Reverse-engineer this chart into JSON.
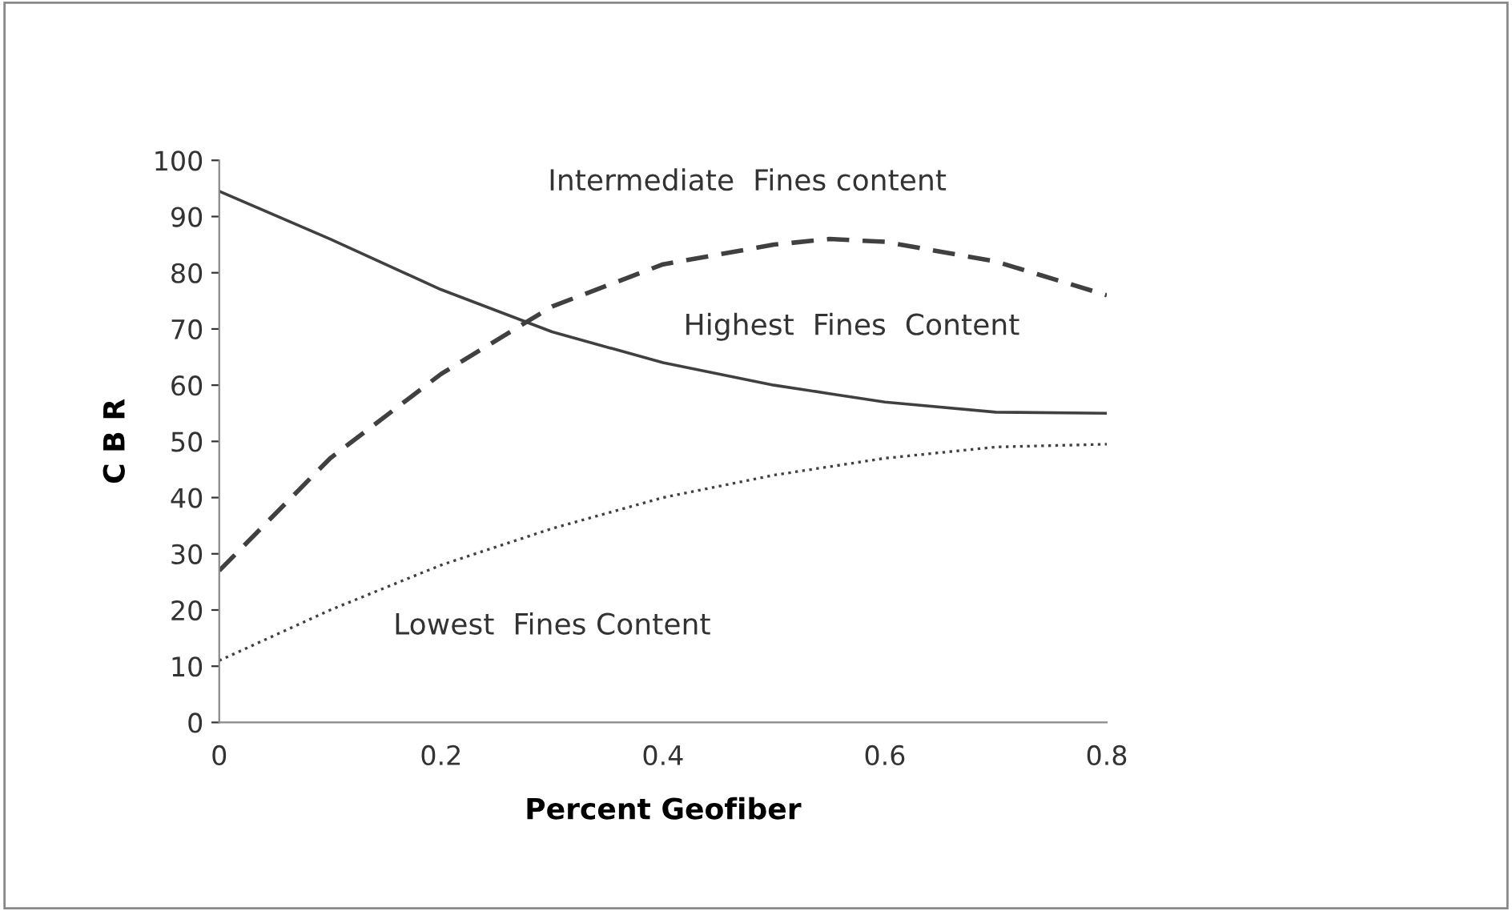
{
  "chart_data": {
    "type": "line",
    "xlabel": "Percent Geofiber",
    "ylabel": "C B R",
    "x": [
      0,
      0.1,
      0.2,
      0.3,
      0.4,
      0.5,
      0.55,
      0.6,
      0.7,
      0.8
    ],
    "series": [
      {
        "name": "Highest  Fines  Content",
        "color": "#404040",
        "line_style": "solid",
        "values": [
          94.5,
          86,
          77,
          69.5,
          64,
          60,
          58.5,
          57,
          55.2,
          55
        ]
      },
      {
        "name": "Intermediate  Fines content",
        "color": "#404040",
        "line_style": "dashed",
        "values": [
          27,
          47,
          62,
          74,
          81.5,
          85,
          86,
          85.5,
          82,
          76
        ]
      },
      {
        "name": "Lowest  Fines Content",
        "color": "#404040",
        "line_style": "dotted",
        "values": [
          11,
          20,
          28,
          34.5,
          40,
          44,
          45.5,
          47,
          49,
          49.5
        ]
      }
    ],
    "xlim": [
      0,
      0.8
    ],
    "xticks": [
      0,
      {
        "value": 0.2,
        "label": "0.2"
      },
      {
        "value": 0.4,
        "label": "0.4"
      },
      {
        "value": 0.6,
        "label": "0.6"
      },
      {
        "value": 0.8,
        "label": "0.8"
      }
    ],
    "ylim": [
      0,
      100
    ],
    "yticks": [
      0,
      10,
      20,
      30,
      40,
      50,
      60,
      70,
      80,
      90,
      100
    ],
    "grid": false,
    "legend": false,
    "marker": "none"
  }
}
